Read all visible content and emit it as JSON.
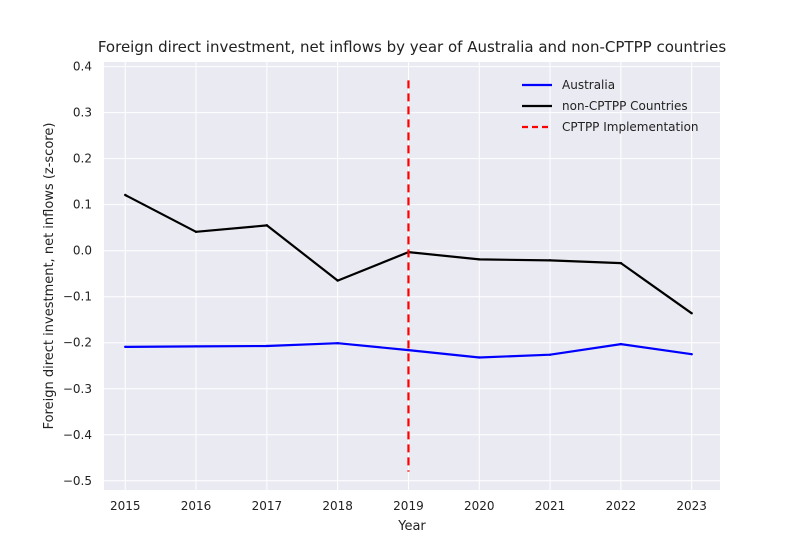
{
  "chart_data": {
    "type": "line",
    "title": "Foreign direct investment, net inflows by year of Australia and non-CPTPP countries",
    "xlabel": "Year",
    "ylabel": "Foreign direct investment, net inflows (z-score)",
    "x": [
      2015,
      2016,
      2017,
      2018,
      2019,
      2020,
      2021,
      2022,
      2023
    ],
    "x_ticks": [
      "2015",
      "2016",
      "2017",
      "2018",
      "2019",
      "2020",
      "2021",
      "2022",
      "2023"
    ],
    "xlim": [
      2014.7,
      2023.4
    ],
    "ylim": [
      -0.52,
      0.41
    ],
    "y_ticks": [
      0.4,
      0.3,
      0.2,
      0.1,
      0.0,
      -0.1,
      -0.2,
      -0.3,
      -0.4,
      -0.5
    ],
    "y_tick_labels": [
      "0.4",
      "0.3",
      "0.2",
      "0.1",
      "0.0",
      "−0.1",
      "−0.2",
      "−0.3",
      "−0.4",
      "−0.5"
    ],
    "grid": true,
    "legend_position": "top-right",
    "series": [
      {
        "name": "Australia",
        "color": "#0000ff",
        "style": "solid",
        "values": [
          -0.209,
          -0.208,
          -0.207,
          -0.201,
          -0.216,
          -0.232,
          -0.226,
          -0.203,
          -0.225
        ]
      },
      {
        "name": "non-CPTPP Countries",
        "color": "#000000",
        "style": "solid",
        "values": [
          0.121,
          0.041,
          0.055,
          -0.065,
          -0.003,
          -0.019,
          -0.021,
          -0.027,
          -0.136
        ]
      }
    ],
    "reference_lines": [
      {
        "name": "CPTPP Implementation",
        "color": "#ff0000",
        "style": "dashed",
        "x": 2019,
        "y_range": [
          -0.48,
          0.37
        ]
      }
    ],
    "colors": {
      "plot_background": "#eaeaf2",
      "grid": "#ffffff"
    }
  }
}
